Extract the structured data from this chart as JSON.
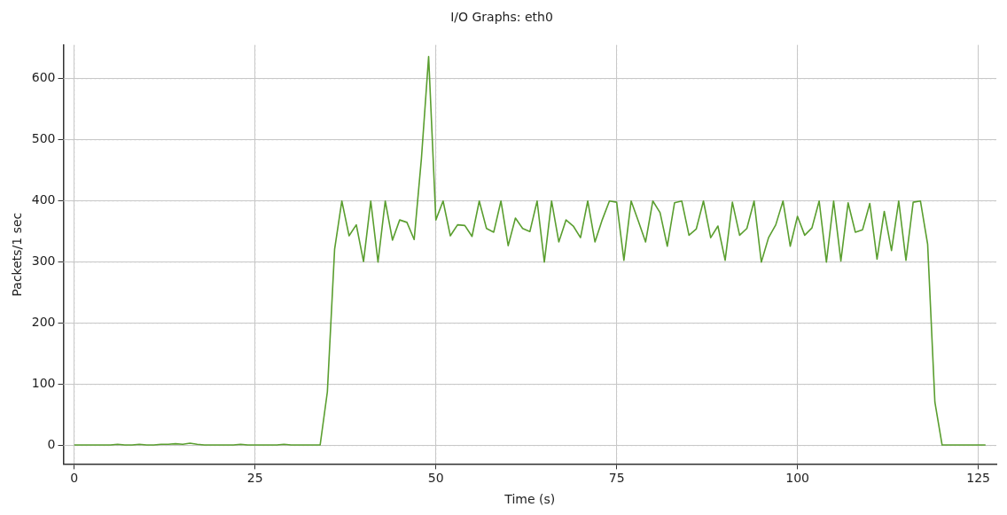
{
  "chart_data": {
    "type": "line",
    "title": "I/O Graphs: eth0",
    "xlabel": "Time (s)",
    "ylabel": "Packets/1 sec",
    "x": [
      0,
      1,
      2,
      3,
      4,
      5,
      6,
      7,
      8,
      9,
      10,
      11,
      12,
      13,
      14,
      15,
      16,
      17,
      18,
      19,
      20,
      21,
      22,
      23,
      24,
      25,
      26,
      27,
      28,
      29,
      30,
      31,
      32,
      33,
      34,
      35,
      36,
      37,
      38,
      39,
      40,
      41,
      42,
      43,
      44,
      45,
      46,
      47,
      48,
      49,
      50,
      51,
      52,
      53,
      54,
      55,
      56,
      57,
      58,
      59,
      60,
      61,
      62,
      63,
      64,
      65,
      66,
      67,
      68,
      69,
      70,
      71,
      72,
      73,
      74,
      75,
      76,
      77,
      78,
      79,
      80,
      81,
      82,
      83,
      84,
      85,
      86,
      87,
      88,
      89,
      90,
      91,
      92,
      93,
      94,
      95,
      96,
      97,
      98,
      99,
      100,
      101,
      102,
      103,
      104,
      105,
      106,
      107,
      108,
      109,
      110,
      111,
      112,
      113,
      114,
      115,
      116,
      117,
      118,
      119,
      120,
      121,
      122,
      123,
      124,
      125,
      126
    ],
    "series": [
      {
        "color": "#5a9e2f",
        "values": [
          1,
          1,
          1,
          1,
          1,
          1,
          2,
          1,
          1,
          2,
          1,
          1,
          2,
          2,
          3,
          2,
          4,
          2,
          1,
          1,
          1,
          1,
          1,
          2,
          1,
          1,
          1,
          1,
          1,
          2,
          1,
          1,
          1,
          1,
          1,
          88,
          321,
          400,
          343,
          361,
          301,
          400,
          300,
          400,
          336,
          369,
          365,
          337,
          469,
          636,
          369,
          400,
          343,
          361,
          360,
          342,
          400,
          355,
          349,
          400,
          327,
          372,
          355,
          350,
          400,
          300,
          400,
          333,
          369,
          359,
          340,
          400,
          333,
          369,
          400,
          398,
          303,
          400,
          367,
          333,
          400,
          381,
          326,
          397,
          400,
          344,
          354,
          400,
          340,
          359,
          303,
          398,
          344,
          355,
          400,
          300,
          340,
          361,
          400,
          326,
          375,
          344,
          356,
          400,
          300,
          400,
          302,
          397,
          349,
          353,
          396,
          305,
          383,
          319,
          400,
          303,
          398,
          400,
          329,
          71,
          1,
          1,
          1,
          1,
          1,
          1,
          1
        ]
      }
    ],
    "xlim": [
      -1.5,
      127.5
    ],
    "ylim": [
      -30,
      655
    ],
    "xticks": [
      0,
      25,
      50,
      75,
      100,
      125
    ],
    "yticks": [
      0,
      100,
      200,
      300,
      400,
      500,
      600
    ],
    "grid": true,
    "legend": false,
    "marker": "none",
    "line_style": "solid"
  }
}
